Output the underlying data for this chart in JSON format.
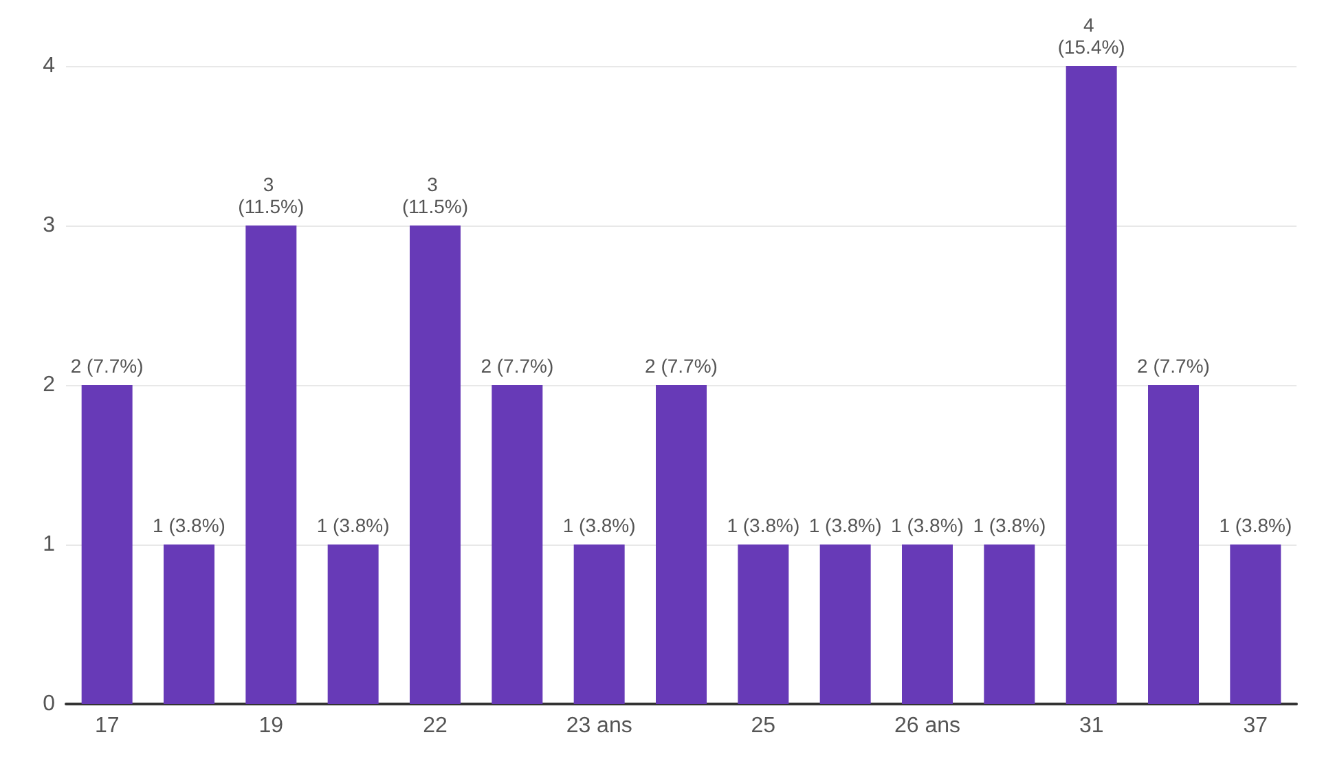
{
  "chart_data": {
    "type": "bar",
    "categories": [
      "17",
      null,
      "19",
      null,
      "22",
      null,
      "23 ans",
      null,
      "25",
      null,
      "26 ans",
      null,
      "31",
      null,
      "37"
    ],
    "values": [
      2,
      1,
      3,
      1,
      3,
      2,
      1,
      2,
      1,
      1,
      1,
      1,
      4,
      2,
      1
    ],
    "value_labels": [
      "2 (7.7%)",
      "1 (3.8%)",
      "3 (11.5%)",
      "1 (3.8%)",
      "3 (11.5%)",
      "2 (7.7%)",
      "1 (3.8%)",
      "2 (7.7%)",
      "1 (3.8%)",
      "1 (3.8%)",
      "1 (3.8%)",
      "1 (3.8%)",
      "4 (15.4%)",
      "2 (7.7%)",
      "1 (3.8%)"
    ],
    "color": "#673ab7",
    "ylim": [
      0,
      4
    ],
    "yticks": [
      0,
      1,
      2,
      3,
      4
    ],
    "grid": "y"
  }
}
